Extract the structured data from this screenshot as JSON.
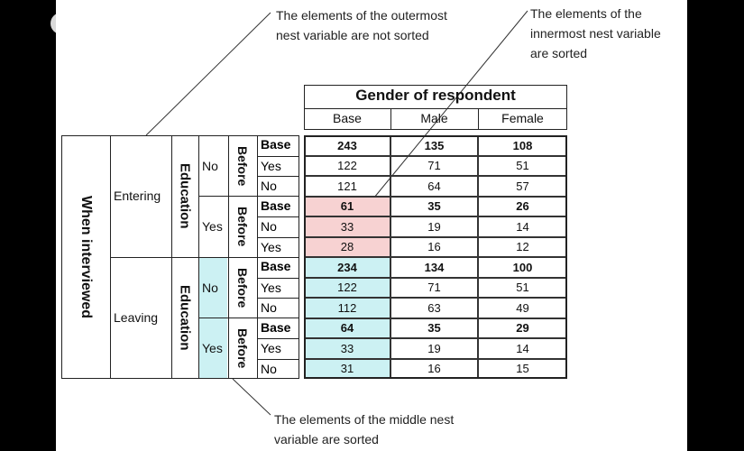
{
  "close_icon": "×",
  "annotations": {
    "outer_line1": "The elements of the outermost",
    "outer_line2": "nest variable are not sorted",
    "inner_line1": "The elements of the",
    "inner_line2": "innermost nest variable",
    "inner_line3": "are sorted",
    "middle_line1": "The elements of the middle nest",
    "middle_line2": "variable are sorted"
  },
  "header": {
    "title": "Gender of respondent",
    "columns": [
      "Base",
      "Male",
      "Female"
    ]
  },
  "row_labels": {
    "outer_variable": "When interviewed",
    "outer_values": [
      "Entering",
      "Leaving"
    ],
    "middle_variable": "Education",
    "middle_values": [
      "No",
      "Yes",
      "No",
      "Yes"
    ],
    "inner_variable": "Before",
    "inner_values": [
      [
        "Base",
        "Yes",
        "No"
      ],
      [
        "Base",
        "No",
        "Yes"
      ],
      [
        "Base",
        "Yes",
        "No"
      ],
      [
        "Base",
        "Yes",
        "No"
      ]
    ]
  },
  "rows": [
    [
      "243",
      "135",
      "108"
    ],
    [
      "122",
      "71",
      "51"
    ],
    [
      "121",
      "64",
      "57"
    ],
    [
      "61",
      "35",
      "26"
    ],
    [
      "33",
      "19",
      "14"
    ],
    [
      "28",
      "16",
      "12"
    ],
    [
      "234",
      "134",
      "100"
    ],
    [
      "122",
      "71",
      "51"
    ],
    [
      "112",
      "63",
      "49"
    ],
    [
      "64",
      "35",
      "29"
    ],
    [
      "33",
      "19",
      "14"
    ],
    [
      "31",
      "16",
      "15"
    ]
  ]
}
